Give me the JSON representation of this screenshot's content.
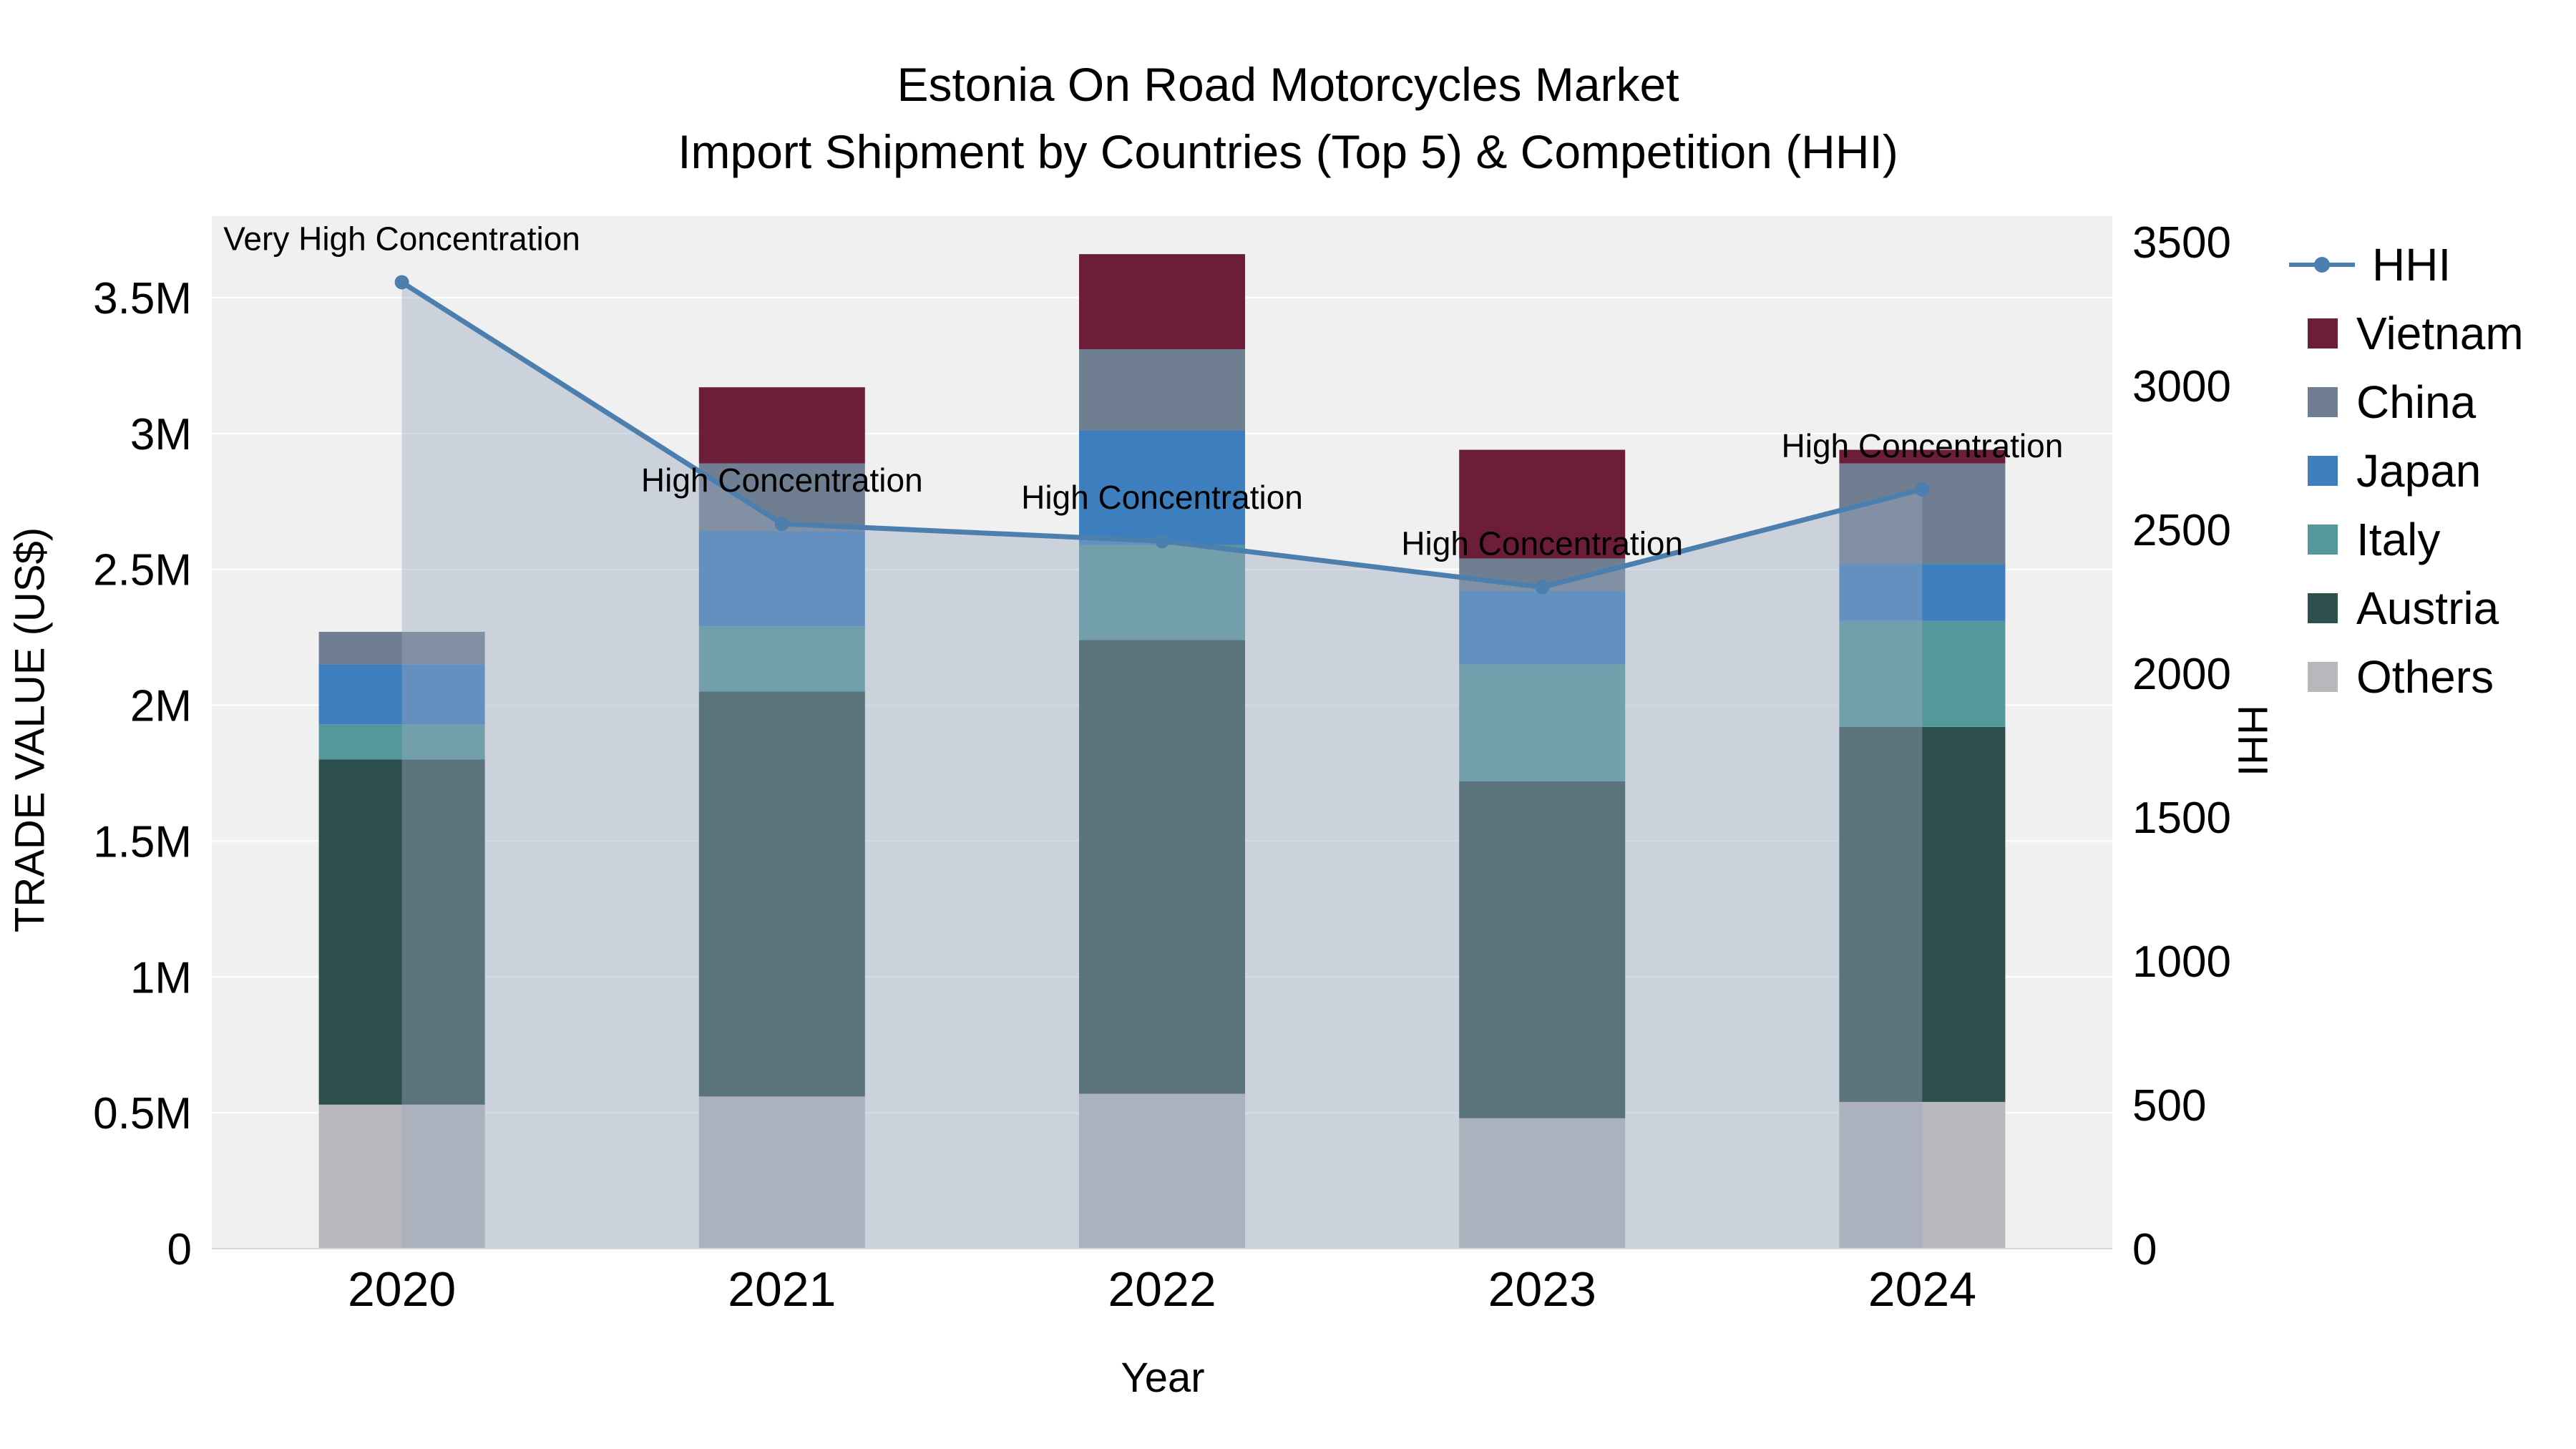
{
  "title": {
    "line1": "Estonia On Road Motorcycles Market",
    "line2": "Import Shipment by Countries (Top 5) & Competition (HHI)"
  },
  "axis_titles": {
    "left": "TRADE VALUE (US$)",
    "right": "HHI",
    "x": "Year"
  },
  "legend": {
    "items": [
      {
        "label": "HHI",
        "type": "line",
        "color": "#4d7fae"
      },
      {
        "label": "Vietnam",
        "type": "square",
        "color": "#6b1d39"
      },
      {
        "label": "China",
        "type": "square",
        "color": "#6f7e90"
      },
      {
        "label": "Japan",
        "type": "square",
        "color": "#3d7fbe"
      },
      {
        "label": "Italy",
        "type": "square",
        "color": "#55989b"
      },
      {
        "label": "Austria",
        "type": "square",
        "color": "#2d4f4b"
      },
      {
        "label": "Others",
        "type": "square",
        "color": "#b7b8bb"
      }
    ]
  },
  "chart_data": {
    "type": "stacked-bar+line",
    "title": "Estonia On Road Motorcycles Market — Import Shipment by Countries (Top 5) & Competition (HHI)",
    "categories": [
      "2020",
      "2021",
      "2022",
      "2023",
      "2024"
    ],
    "bar_series": [
      {
        "name": "Others",
        "color": "#b7b8bb",
        "values": [
          530000,
          560000,
          570000,
          480000,
          540000
        ]
      },
      {
        "name": "Austria",
        "color": "#2d4f4b",
        "values": [
          1270000,
          1490000,
          1670000,
          1240000,
          1380000
        ]
      },
      {
        "name": "Italy",
        "color": "#55989b",
        "values": [
          130000,
          240000,
          350000,
          430000,
          390000
        ]
      },
      {
        "name": "Japan",
        "color": "#3d7fbe",
        "values": [
          220000,
          350000,
          420000,
          270000,
          210000
        ]
      },
      {
        "name": "China",
        "color": "#6f7e90",
        "values": [
          120000,
          250000,
          300000,
          120000,
          370000
        ]
      },
      {
        "name": "Vietnam",
        "color": "#6b1d39",
        "values": [
          0,
          280000,
          350000,
          400000,
          50000
        ]
      }
    ],
    "line_series": {
      "name": "HHI",
      "color": "#4d7fae",
      "area_fill": "#9aa9c1",
      "area_opacity": 0.42,
      "values": [
        3360,
        2520,
        2460,
        2300,
        2640
      ]
    },
    "annotations": [
      {
        "index": 0,
        "text": "Very High Concentration"
      },
      {
        "index": 1,
        "text": "High Concentration"
      },
      {
        "index": 2,
        "text": "High Concentration"
      },
      {
        "index": 3,
        "text": "High Concentration"
      },
      {
        "index": 4,
        "text": "High Concentration"
      }
    ],
    "left_axis": {
      "label": "TRADE VALUE (US$)",
      "min": 0,
      "max": 3800000,
      "ticks": [
        0,
        500000,
        1000000,
        1500000,
        2000000,
        2500000,
        3000000,
        3500000
      ],
      "tick_labels": [
        "0",
        "0.5M",
        "1M",
        "1.5M",
        "2M",
        "2.5M",
        "3M",
        "3.5M"
      ]
    },
    "right_axis": {
      "label": "HHI",
      "min": 0,
      "max": 3590,
      "ticks": [
        0,
        500,
        1000,
        1500,
        2000,
        2500,
        3000,
        3500
      ],
      "tick_labels": [
        "0",
        "500",
        "1000",
        "1500",
        "2000",
        "2500",
        "3000",
        "3500"
      ]
    }
  }
}
